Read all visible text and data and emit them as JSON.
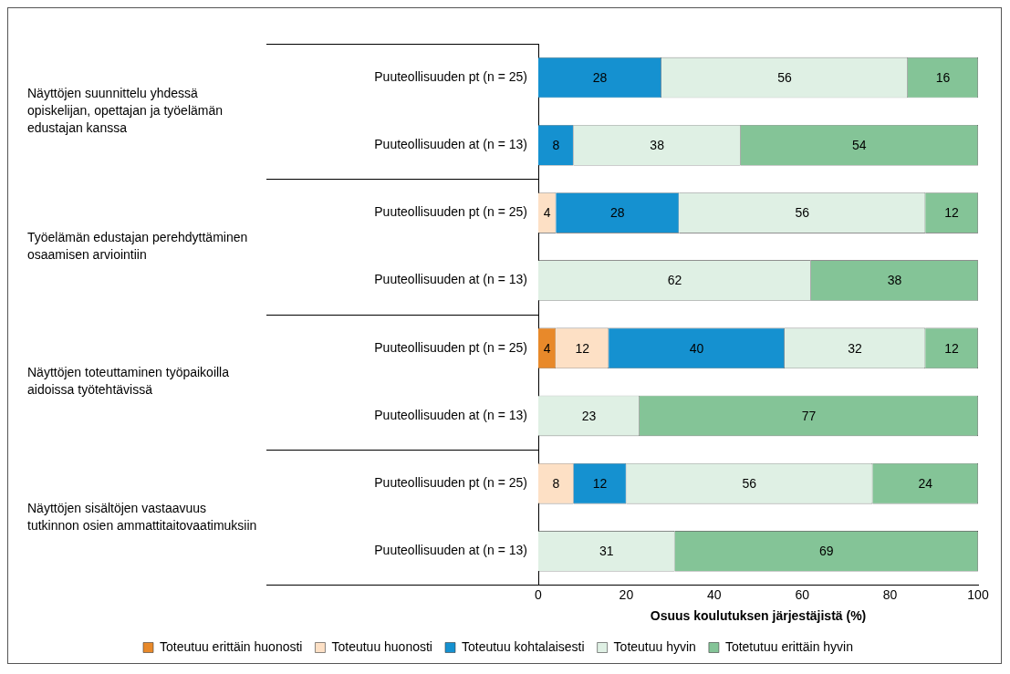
{
  "chart_data": {
    "type": "bar",
    "orientation": "horizontal",
    "stacked": true,
    "data_labels": true,
    "legend": "bottom",
    "grid": false,
    "xlabel": "Osuus koulutuksen järjestäjistä (%)",
    "xlim": [
      0,
      100
    ],
    "xticks": [
      0,
      20,
      40,
      60,
      80,
      100
    ],
    "categories": [
      "Puuteollisuuden pt (n = 25)",
      "Puuteollisuuden at (n = 13)",
      "Puuteollisuuden pt (n = 25)",
      "Puuteollisuuden at (n = 13)",
      "Puuteollisuuden pt (n = 25)",
      "Puuteollisuuden at (n = 13)",
      "Puuteollisuuden pt (n = 25)",
      "Puuteollisuuden at (n = 13)"
    ],
    "annotations": [
      "Näyttöjen suunnittelu yhdessä opiskelijan, opettajan ja työelämän edustajan kanssa",
      "Työelämän edustajan perehdyttäminen osaamisen arviointiin",
      "Näyttöjen toteuttaminen työpaikoilla aidoissa työtehtävissä",
      "Näyttöjen sisältöjen vastaavuus tutkinnon osien ammattitaitovaatimuksiin"
    ],
    "series": [
      {
        "name": "Toteutuu erittäin huonosti",
        "color": "#e8892a",
        "values": [
          null,
          null,
          null,
          null,
          4,
          null,
          null,
          null
        ]
      },
      {
        "name": "Toteutuu huonosti",
        "color": "#fde0c5",
        "values": [
          null,
          null,
          4,
          null,
          12,
          null,
          8,
          null
        ]
      },
      {
        "name": "Toteutuu kohtalaisesti",
        "color": "#1591d0",
        "values": [
          28,
          8,
          28,
          null,
          40,
          null,
          12,
          null
        ]
      },
      {
        "name": "Toteutuu hyvin",
        "color": "#dff0e4",
        "values": [
          56,
          38,
          56,
          62,
          32,
          23,
          56,
          31
        ]
      },
      {
        "name": "Totetutuu erittäin hyvin",
        "color": "#84c497",
        "values": [
          16,
          54,
          12,
          38,
          12,
          77,
          24,
          69
        ]
      }
    ]
  }
}
